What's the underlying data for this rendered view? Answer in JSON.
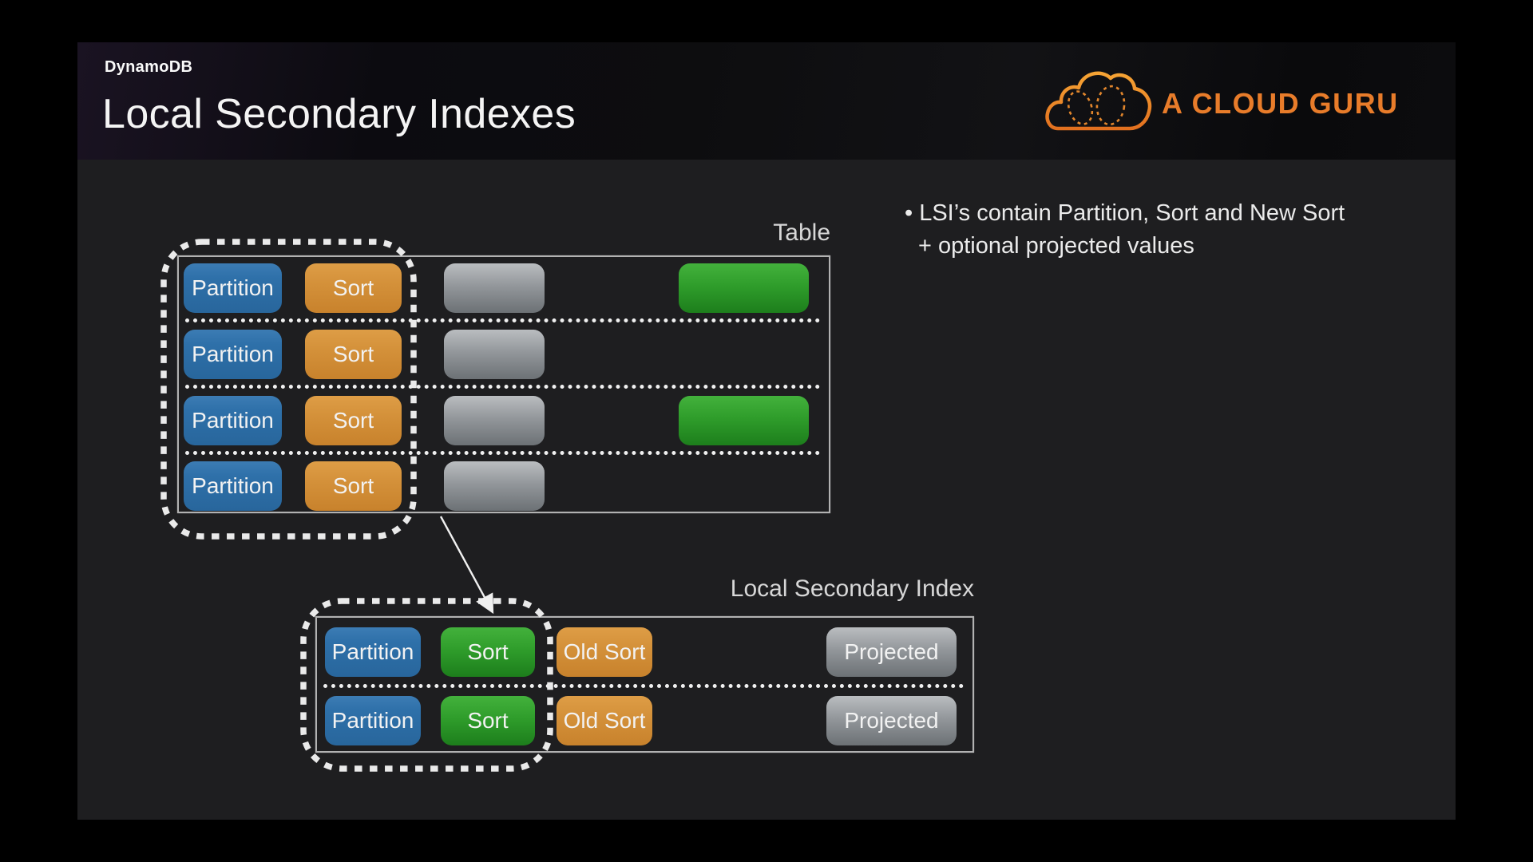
{
  "header": {
    "kicker": "DynamoDB",
    "title": "Local Secondary Indexes"
  },
  "logo": {
    "text": "A CLOUD GURU",
    "accent_color": "#e87c2a"
  },
  "bullets": {
    "line1": "• LSI’s contain Partition, Sort and New Sort",
    "line2": "+ optional projected values"
  },
  "table_diagram": {
    "label": "Table",
    "rows": [
      {
        "cells": [
          {
            "label": "Partition",
            "color": "blue"
          },
          {
            "label": "Sort",
            "color": "orange"
          },
          {
            "label": "",
            "color": "gray"
          },
          {
            "label": "",
            "color": "green"
          }
        ]
      },
      {
        "cells": [
          {
            "label": "Partition",
            "color": "blue"
          },
          {
            "label": "Sort",
            "color": "orange"
          },
          {
            "label": "",
            "color": "gray"
          }
        ]
      },
      {
        "cells": [
          {
            "label": "Partition",
            "color": "blue"
          },
          {
            "label": "Sort",
            "color": "orange"
          },
          {
            "label": "",
            "color": "gray"
          },
          {
            "label": "",
            "color": "green"
          }
        ]
      },
      {
        "cells": [
          {
            "label": "Partition",
            "color": "blue"
          },
          {
            "label": "Sort",
            "color": "orange"
          },
          {
            "label": "",
            "color": "gray"
          }
        ]
      }
    ]
  },
  "lsi_diagram": {
    "label": "Local Secondary Index",
    "rows": [
      {
        "cells": [
          {
            "label": "Partition",
            "color": "blue"
          },
          {
            "label": "Sort",
            "color": "green"
          },
          {
            "label": "Old Sort",
            "color": "orange"
          },
          {
            "label": "Projected",
            "color": "gray"
          }
        ]
      },
      {
        "cells": [
          {
            "label": "Partition",
            "color": "blue"
          },
          {
            "label": "Sort",
            "color": "green"
          },
          {
            "label": "Old Sort",
            "color": "orange"
          },
          {
            "label": "Projected",
            "color": "gray"
          }
        ]
      }
    ]
  },
  "colors": {
    "slide_bg": "#1e1e20",
    "partition_blue": "#2e70a9",
    "sort_orange": "#d4913a",
    "new_sort_green": "#2f9d2b",
    "attribute_gray": "#93979b",
    "logo_orange": "#e87c2a",
    "text_light": "#ebebeb"
  }
}
